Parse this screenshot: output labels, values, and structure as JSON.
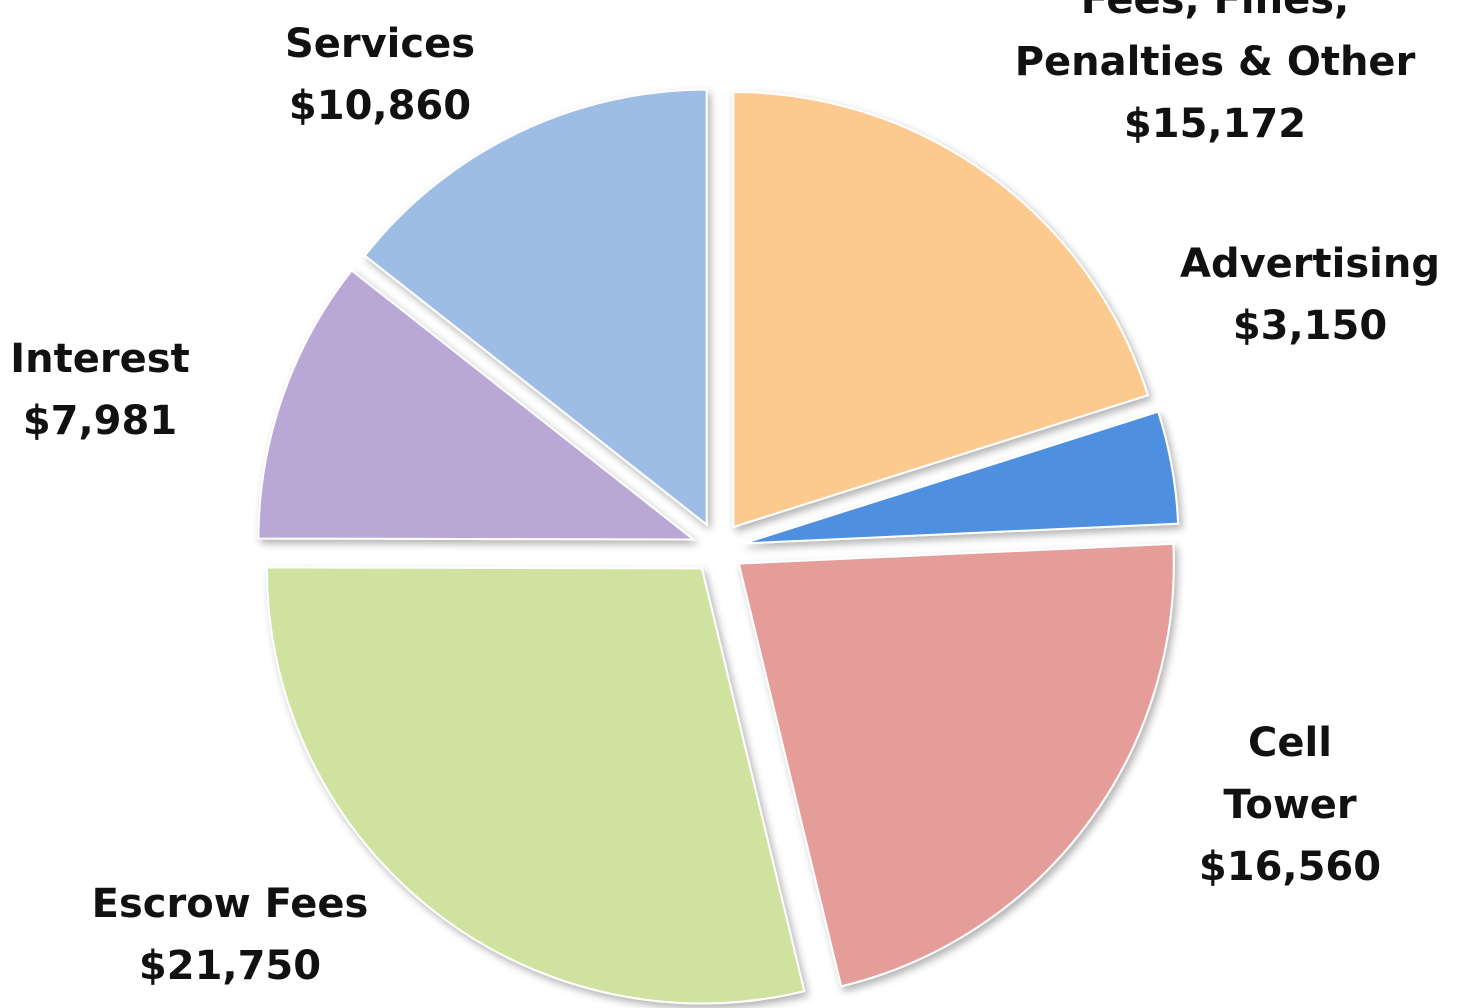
{
  "chart_data": {
    "type": "pie",
    "categories": [
      "Fees, Fines, Penalties & Other",
      "Advertising",
      "Cell Tower",
      "Escrow Fees",
      "Interest",
      "Services"
    ],
    "values": [
      15172,
      3150,
      16560,
      21750,
      7981,
      10860
    ],
    "value_labels": [
      "$15,172",
      "$3,150",
      "$16,560",
      "$21,750",
      "$7,981",
      "$10,860"
    ],
    "colors": [
      "#fcc98e",
      "#4f8fdf",
      "#e59d9a",
      "#cfe2a0",
      "#b9a7d6",
      "#9dbde4"
    ],
    "start_angle": 0,
    "direction": "clockwise",
    "exploded": true
  }
}
